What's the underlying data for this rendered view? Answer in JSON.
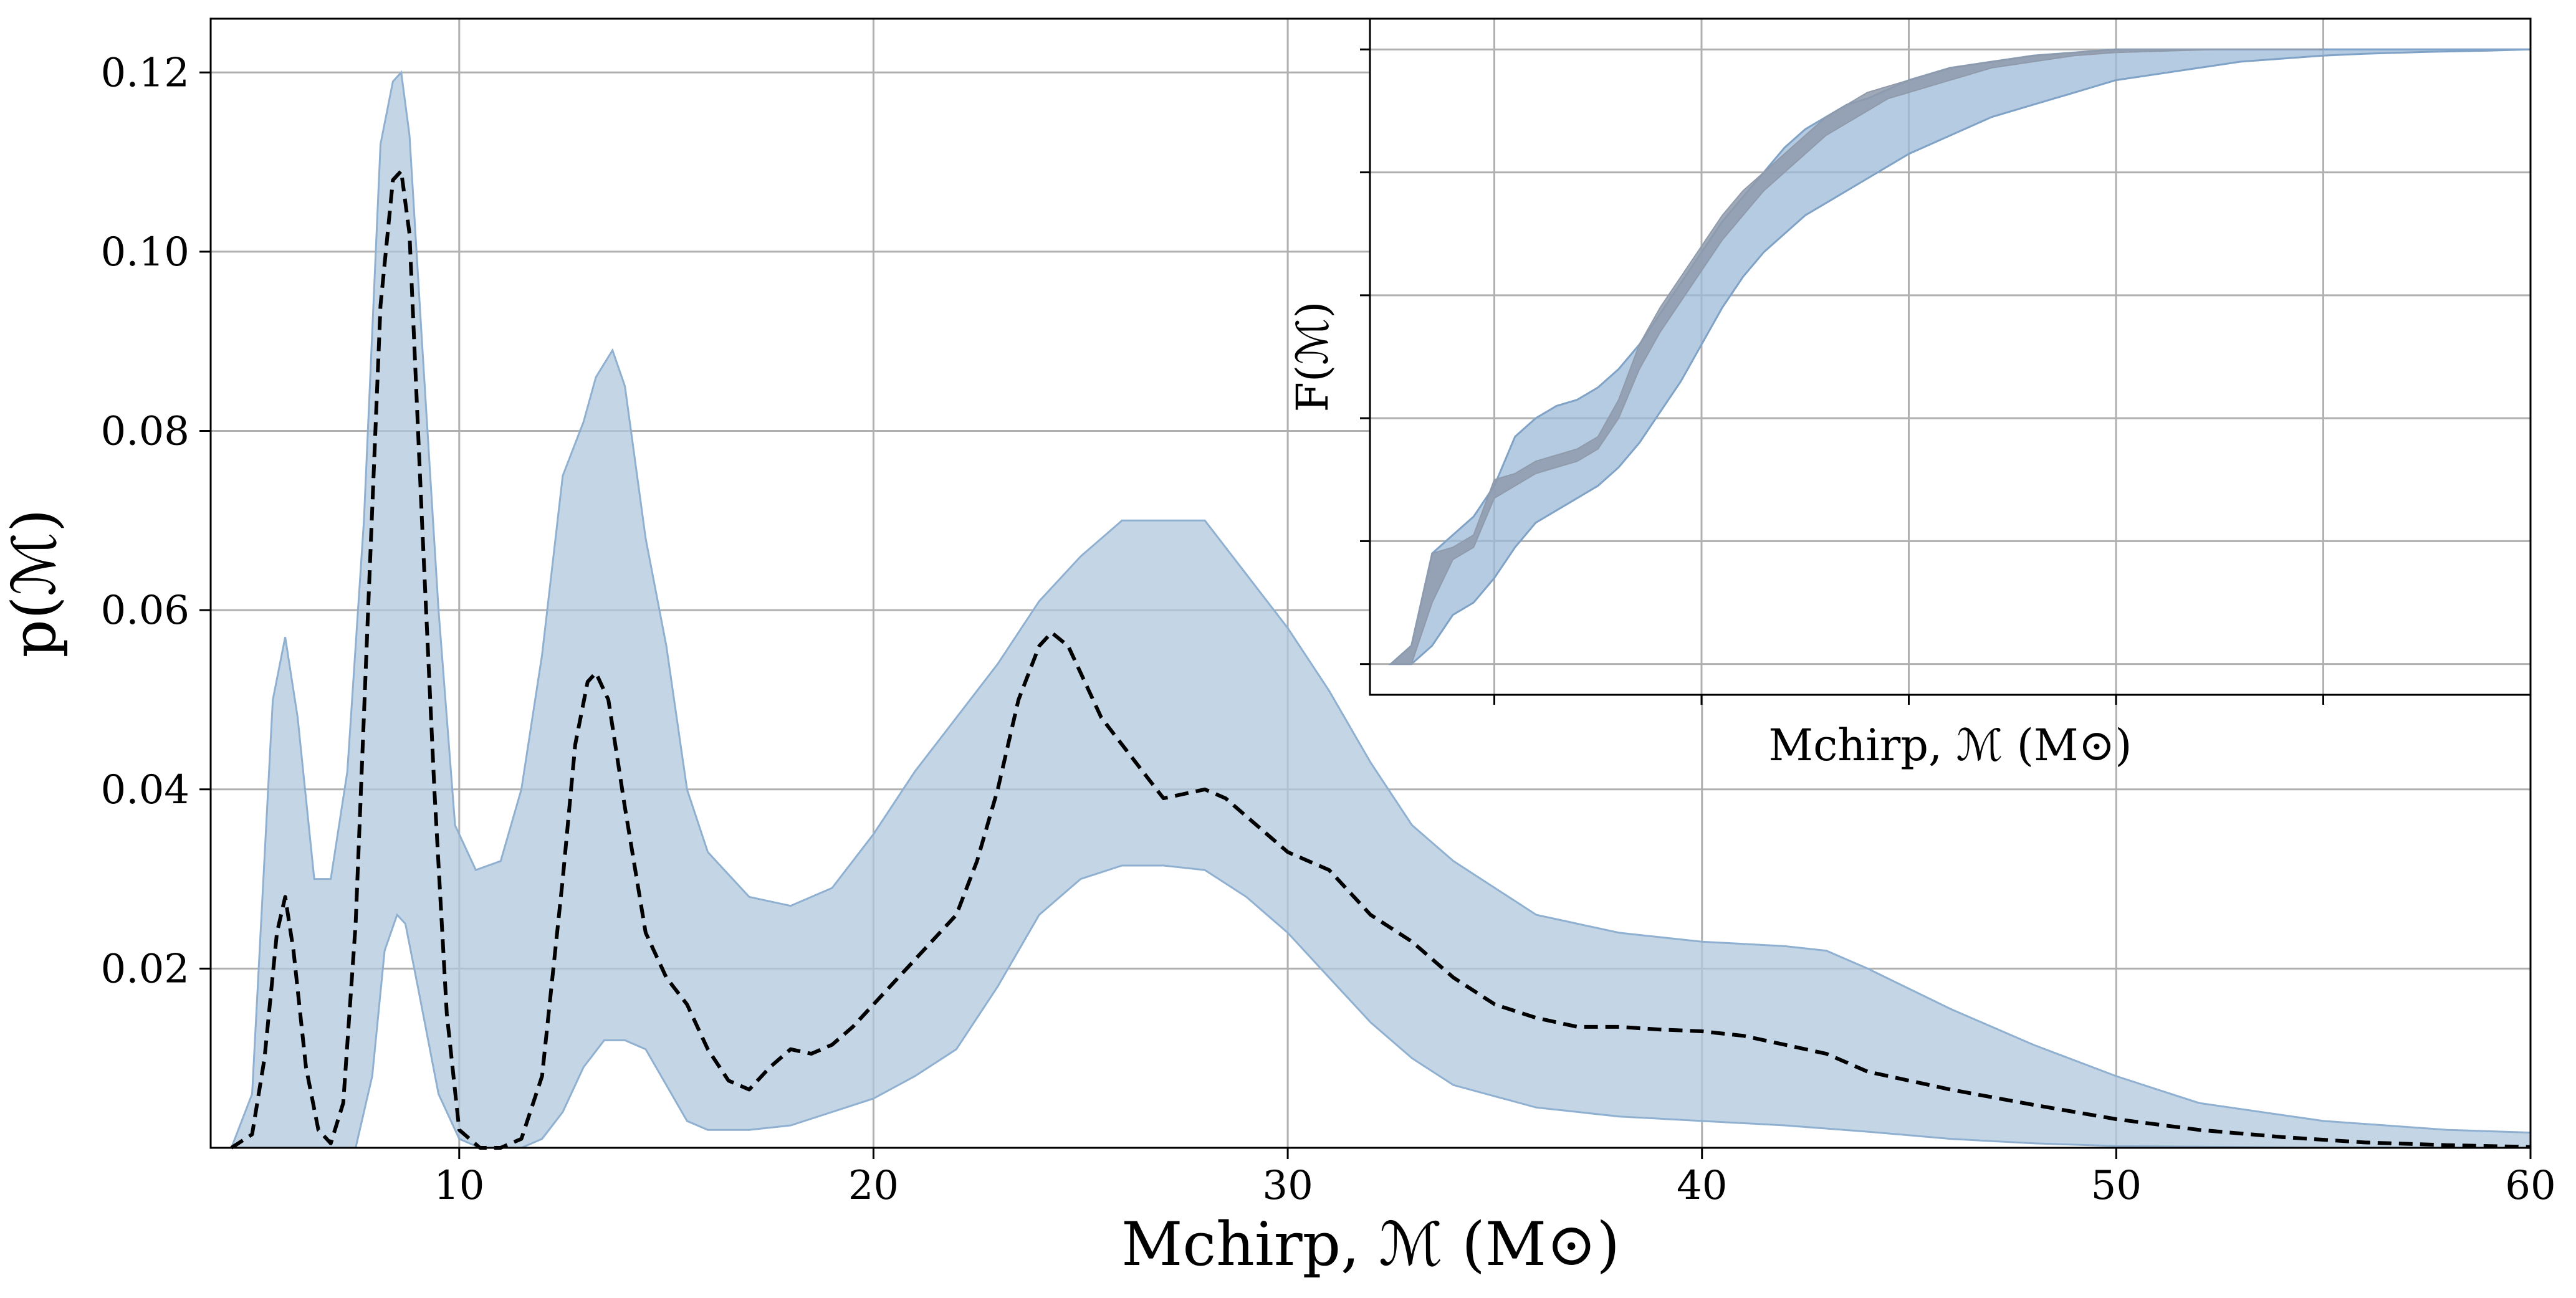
{
  "chart_data": [
    {
      "type": "area",
      "xlabel": "Mchirp, ℳ (M⊙)",
      "ylabel": "p(ℳ)",
      "xlim": [
        4,
        60
      ],
      "ylim": [
        0,
        0.126
      ],
      "xticks": [
        10,
        20,
        30,
        40,
        50,
        60
      ],
      "yticks": [
        0.02,
        0.04,
        0.06,
        0.08,
        0.1,
        0.12
      ],
      "xtick_labels": [
        "10",
        "20",
        "30",
        "40",
        "50",
        "60"
      ],
      "ytick_labels": [
        "0.02",
        "0.04",
        "0.06",
        "0.08",
        "0.10",
        "0.12"
      ],
      "grid": true,
      "band_color": "#b0c8de",
      "band_edge_color": "#8fb0d0",
      "median_color": "#000000",
      "series": [
        {
          "style": "band-upper",
          "x": [
            4.5,
            5.0,
            5.5,
            5.8,
            6.1,
            6.5,
            6.9,
            7.3,
            7.7,
            8.1,
            8.4,
            8.6,
            8.8,
            9.1,
            9.5,
            9.9,
            10.4,
            11.0,
            11.5,
            12.0,
            12.5,
            13.0,
            13.3,
            13.7,
            14.0,
            14.5,
            15.0,
            15.5,
            16.0,
            17.0,
            18.0,
            19.0,
            20.0,
            21.0,
            22.0,
            23.0,
            24.0,
            25.0,
            26.0,
            27.0,
            28.0,
            29.0,
            30.0,
            31.0,
            32.0,
            33.0,
            34.0,
            35.0,
            36.0,
            37.0,
            38.0,
            40.0,
            42.0,
            43.0,
            44.0,
            46.0,
            48.0,
            50.0,
            52.0,
            55.0,
            58.0,
            60.0
          ],
          "values": [
            0.0,
            0.006,
            0.05,
            0.057,
            0.048,
            0.03,
            0.03,
            0.042,
            0.07,
            0.112,
            0.119,
            0.12,
            0.113,
            0.09,
            0.06,
            0.036,
            0.031,
            0.032,
            0.04,
            0.055,
            0.075,
            0.081,
            0.086,
            0.089,
            0.085,
            0.068,
            0.056,
            0.04,
            0.033,
            0.028,
            0.027,
            0.029,
            0.035,
            0.042,
            0.048,
            0.054,
            0.061,
            0.066,
            0.07,
            0.07,
            0.07,
            0.064,
            0.058,
            0.051,
            0.043,
            0.036,
            0.032,
            0.029,
            0.026,
            0.025,
            0.024,
            0.023,
            0.0225,
            0.022,
            0.02,
            0.0155,
            0.0115,
            0.008,
            0.005,
            0.003,
            0.002,
            0.0017
          ]
        },
        {
          "style": "band-lower",
          "x": [
            4.5,
            5.0,
            5.5,
            6.0,
            6.5,
            7.0,
            7.5,
            7.9,
            8.2,
            8.5,
            8.7,
            9.0,
            9.5,
            10.0,
            10.5,
            11.0,
            11.5,
            12.0,
            12.5,
            13.0,
            13.5,
            14.0,
            14.5,
            15.0,
            15.5,
            16.0,
            17.0,
            18.0,
            19.0,
            20.0,
            21.0,
            22.0,
            23.0,
            24.0,
            25.0,
            26.0,
            27.0,
            28.0,
            29.0,
            30.0,
            31.0,
            32.0,
            33.0,
            34.0,
            36.0,
            38.0,
            40.0,
            42.0,
            44.0,
            46.0,
            48.0,
            50.0,
            55.0,
            60.0
          ],
          "values": [
            0.0,
            0.0,
            0.0,
            0.0,
            0.0,
            0.0,
            0.0,
            0.008,
            0.022,
            0.026,
            0.025,
            0.018,
            0.006,
            0.001,
            0.0,
            0.0,
            0.0,
            0.001,
            0.004,
            0.009,
            0.012,
            0.012,
            0.011,
            0.007,
            0.003,
            0.002,
            0.002,
            0.0025,
            0.004,
            0.0055,
            0.008,
            0.011,
            0.018,
            0.026,
            0.03,
            0.0315,
            0.0315,
            0.031,
            0.028,
            0.024,
            0.019,
            0.014,
            0.01,
            0.007,
            0.0045,
            0.0035,
            0.003,
            0.0025,
            0.0018,
            0.001,
            0.0005,
            0.0002,
            0.0,
            0.0
          ]
        },
        {
          "style": "median-dashed",
          "x": [
            4.5,
            5.0,
            5.3,
            5.6,
            5.8,
            6.0,
            6.3,
            6.6,
            6.9,
            7.2,
            7.5,
            7.8,
            8.1,
            8.4,
            8.6,
            8.8,
            9.1,
            9.4,
            9.7,
            10.0,
            10.5,
            11.0,
            11.5,
            12.0,
            12.5,
            12.8,
            13.1,
            13.3,
            13.6,
            14.0,
            14.5,
            15.0,
            15.5,
            16.0,
            16.5,
            17.0,
            17.5,
            18.0,
            18.5,
            19.0,
            19.5,
            20.0,
            21.0,
            22.0,
            22.5,
            23.0,
            23.5,
            24.0,
            24.3,
            24.7,
            25.0,
            25.5,
            26.0,
            26.5,
            27.0,
            27.5,
            28.0,
            28.5,
            29.0,
            29.5,
            30.0,
            31.0,
            32.0,
            33.0,
            34.0,
            35.0,
            36.0,
            37.0,
            38.0,
            39.0,
            40.0,
            41.0,
            42.0,
            43.0,
            44.0,
            46.0,
            48.0,
            50.0,
            52.0,
            54.0,
            56.0,
            58.0,
            60.0
          ],
          "values": [
            0.0,
            0.0015,
            0.01,
            0.024,
            0.028,
            0.022,
            0.009,
            0.002,
            0.0005,
            0.005,
            0.025,
            0.06,
            0.094,
            0.108,
            0.109,
            0.102,
            0.07,
            0.04,
            0.015,
            0.002,
            0.0,
            0.0,
            0.001,
            0.008,
            0.03,
            0.045,
            0.052,
            0.053,
            0.05,
            0.038,
            0.024,
            0.019,
            0.016,
            0.011,
            0.0075,
            0.0065,
            0.009,
            0.011,
            0.0105,
            0.0115,
            0.0135,
            0.016,
            0.021,
            0.026,
            0.032,
            0.04,
            0.05,
            0.056,
            0.0575,
            0.056,
            0.053,
            0.048,
            0.045,
            0.042,
            0.039,
            0.0395,
            0.04,
            0.039,
            0.037,
            0.035,
            0.033,
            0.031,
            0.026,
            0.023,
            0.019,
            0.016,
            0.0145,
            0.0135,
            0.0135,
            0.0132,
            0.013,
            0.0125,
            0.0115,
            0.0105,
            0.0085,
            0.0065,
            0.0048,
            0.0032,
            0.002,
            0.0012,
            0.0006,
            0.0003,
            0.0001
          ]
        }
      ]
    },
    {
      "type": "area",
      "xlabel": "Mchirp, ℳ (M⊙)",
      "ylabel": "F(ℳ)",
      "xlim": [
        4,
        60
      ],
      "ylim": [
        -0.05,
        1.05
      ],
      "xticks": [
        10,
        20,
        30,
        40,
        50
      ],
      "yticks": [
        0.0,
        0.2,
        0.4,
        0.6,
        0.8,
        1.0
      ],
      "grid": true,
      "band_color": "#9bbad8",
      "band_edge_color": "#7fa2c6",
      "median_band_color": "#8f9aab",
      "series": [
        {
          "style": "band-upper",
          "x": [
            5,
            6,
            7,
            8,
            9,
            10,
            11,
            12,
            13,
            14,
            15,
            16,
            17,
            18,
            19,
            20,
            21,
            22,
            23,
            24,
            25,
            26,
            27,
            28,
            29,
            30,
            32,
            34,
            36,
            38,
            40,
            45,
            50,
            55,
            60
          ],
          "values": [
            0.0,
            0.03,
            0.18,
            0.21,
            0.24,
            0.29,
            0.37,
            0.4,
            0.42,
            0.43,
            0.45,
            0.48,
            0.52,
            0.57,
            0.62,
            0.67,
            0.72,
            0.76,
            0.8,
            0.84,
            0.87,
            0.89,
            0.91,
            0.92,
            0.935,
            0.95,
            0.97,
            0.98,
            0.99,
            0.995,
            1.0,
            1.0,
            1.0,
            1.0,
            1.0
          ]
        },
        {
          "style": "band-lower",
          "x": [
            5,
            6,
            7,
            8,
            9,
            10,
            11,
            12,
            13,
            14,
            15,
            16,
            17,
            18,
            19,
            20,
            21,
            22,
            23,
            24,
            25,
            26,
            27,
            28,
            29,
            30,
            32,
            34,
            36,
            38,
            40,
            42,
            44,
            46,
            48,
            50,
            52,
            55,
            58,
            60
          ],
          "values": [
            0.0,
            0.0,
            0.03,
            0.08,
            0.1,
            0.14,
            0.19,
            0.23,
            0.25,
            0.27,
            0.29,
            0.32,
            0.36,
            0.41,
            0.46,
            0.52,
            0.58,
            0.63,
            0.67,
            0.7,
            0.73,
            0.75,
            0.77,
            0.79,
            0.81,
            0.83,
            0.86,
            0.89,
            0.91,
            0.93,
            0.95,
            0.96,
            0.97,
            0.98,
            0.985,
            0.99,
            0.993,
            0.996,
            0.998,
            1.0
          ]
        },
        {
          "style": "median-band-upper",
          "x": [
            5,
            6,
            7,
            8,
            9,
            10,
            11,
            12,
            13,
            14,
            15,
            16,
            17,
            18,
            19,
            20,
            21,
            22,
            23,
            24,
            25,
            26,
            27,
            28,
            29,
            30,
            32,
            34,
            36,
            38,
            40,
            45,
            50
          ],
          "values": [
            0.0,
            0.03,
            0.18,
            0.19,
            0.21,
            0.3,
            0.31,
            0.33,
            0.34,
            0.35,
            0.37,
            0.43,
            0.52,
            0.58,
            0.63,
            0.68,
            0.73,
            0.77,
            0.8,
            0.83,
            0.86,
            0.89,
            0.91,
            0.93,
            0.94,
            0.95,
            0.97,
            0.98,
            0.99,
            0.995,
            1.0,
            1.0,
            1.0
          ]
        },
        {
          "style": "median-band-lower",
          "x": [
            5,
            6,
            7,
            8,
            9,
            10,
            11,
            12,
            13,
            14,
            15,
            16,
            17,
            18,
            19,
            20,
            21,
            22,
            23,
            24,
            25,
            26,
            27,
            28,
            29,
            30,
            32,
            34,
            36,
            38,
            40,
            45,
            50
          ],
          "values": [
            0.0,
            0.0,
            0.1,
            0.17,
            0.19,
            0.27,
            0.29,
            0.31,
            0.32,
            0.33,
            0.35,
            0.4,
            0.48,
            0.54,
            0.59,
            0.64,
            0.69,
            0.73,
            0.77,
            0.8,
            0.83,
            0.86,
            0.88,
            0.9,
            0.92,
            0.93,
            0.95,
            0.97,
            0.98,
            0.99,
            0.995,
            1.0,
            1.0
          ]
        }
      ]
    }
  ]
}
